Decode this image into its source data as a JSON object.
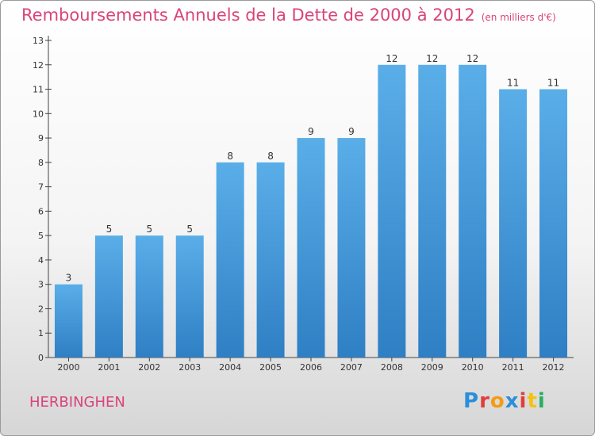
{
  "header": {
    "title": "Remboursements Annuels de la Dette de 2000 à 2012",
    "subtitle": "(en milliers d'€)"
  },
  "commune": "HERBINGHEN",
  "logo": {
    "letters": [
      "P",
      "r",
      "o",
      "x",
      "i",
      "t",
      "i"
    ],
    "colors": [
      "#2a8fd8",
      "#e23d3d",
      "#f39c12",
      "#2a8fd8",
      "#e23d3d",
      "#f1c40f",
      "#27ae60"
    ]
  },
  "chart_data": {
    "type": "bar",
    "categories": [
      "2000",
      "2001",
      "2002",
      "2003",
      "2004",
      "2005",
      "2006",
      "2007",
      "2008",
      "2009",
      "2010",
      "2011",
      "2012"
    ],
    "values": [
      3,
      5,
      5,
      5,
      8,
      8,
      9,
      9,
      12,
      12,
      12,
      11,
      11
    ],
    "title": "Remboursements Annuels de la Dette de 2000 à 2012",
    "subtitle": "(en milliers d'€)",
    "ylim": [
      0,
      13
    ],
    "yticks": [
      0,
      1,
      2,
      3,
      4,
      5,
      6,
      7,
      8,
      9,
      10,
      11,
      12,
      13
    ],
    "grid": false,
    "bar_color": "#4a9fe0",
    "data_labels": [
      "3",
      "5",
      "5",
      "5",
      "8",
      "8",
      "9",
      "9",
      "12",
      "12",
      "12",
      "11",
      "11"
    ]
  }
}
